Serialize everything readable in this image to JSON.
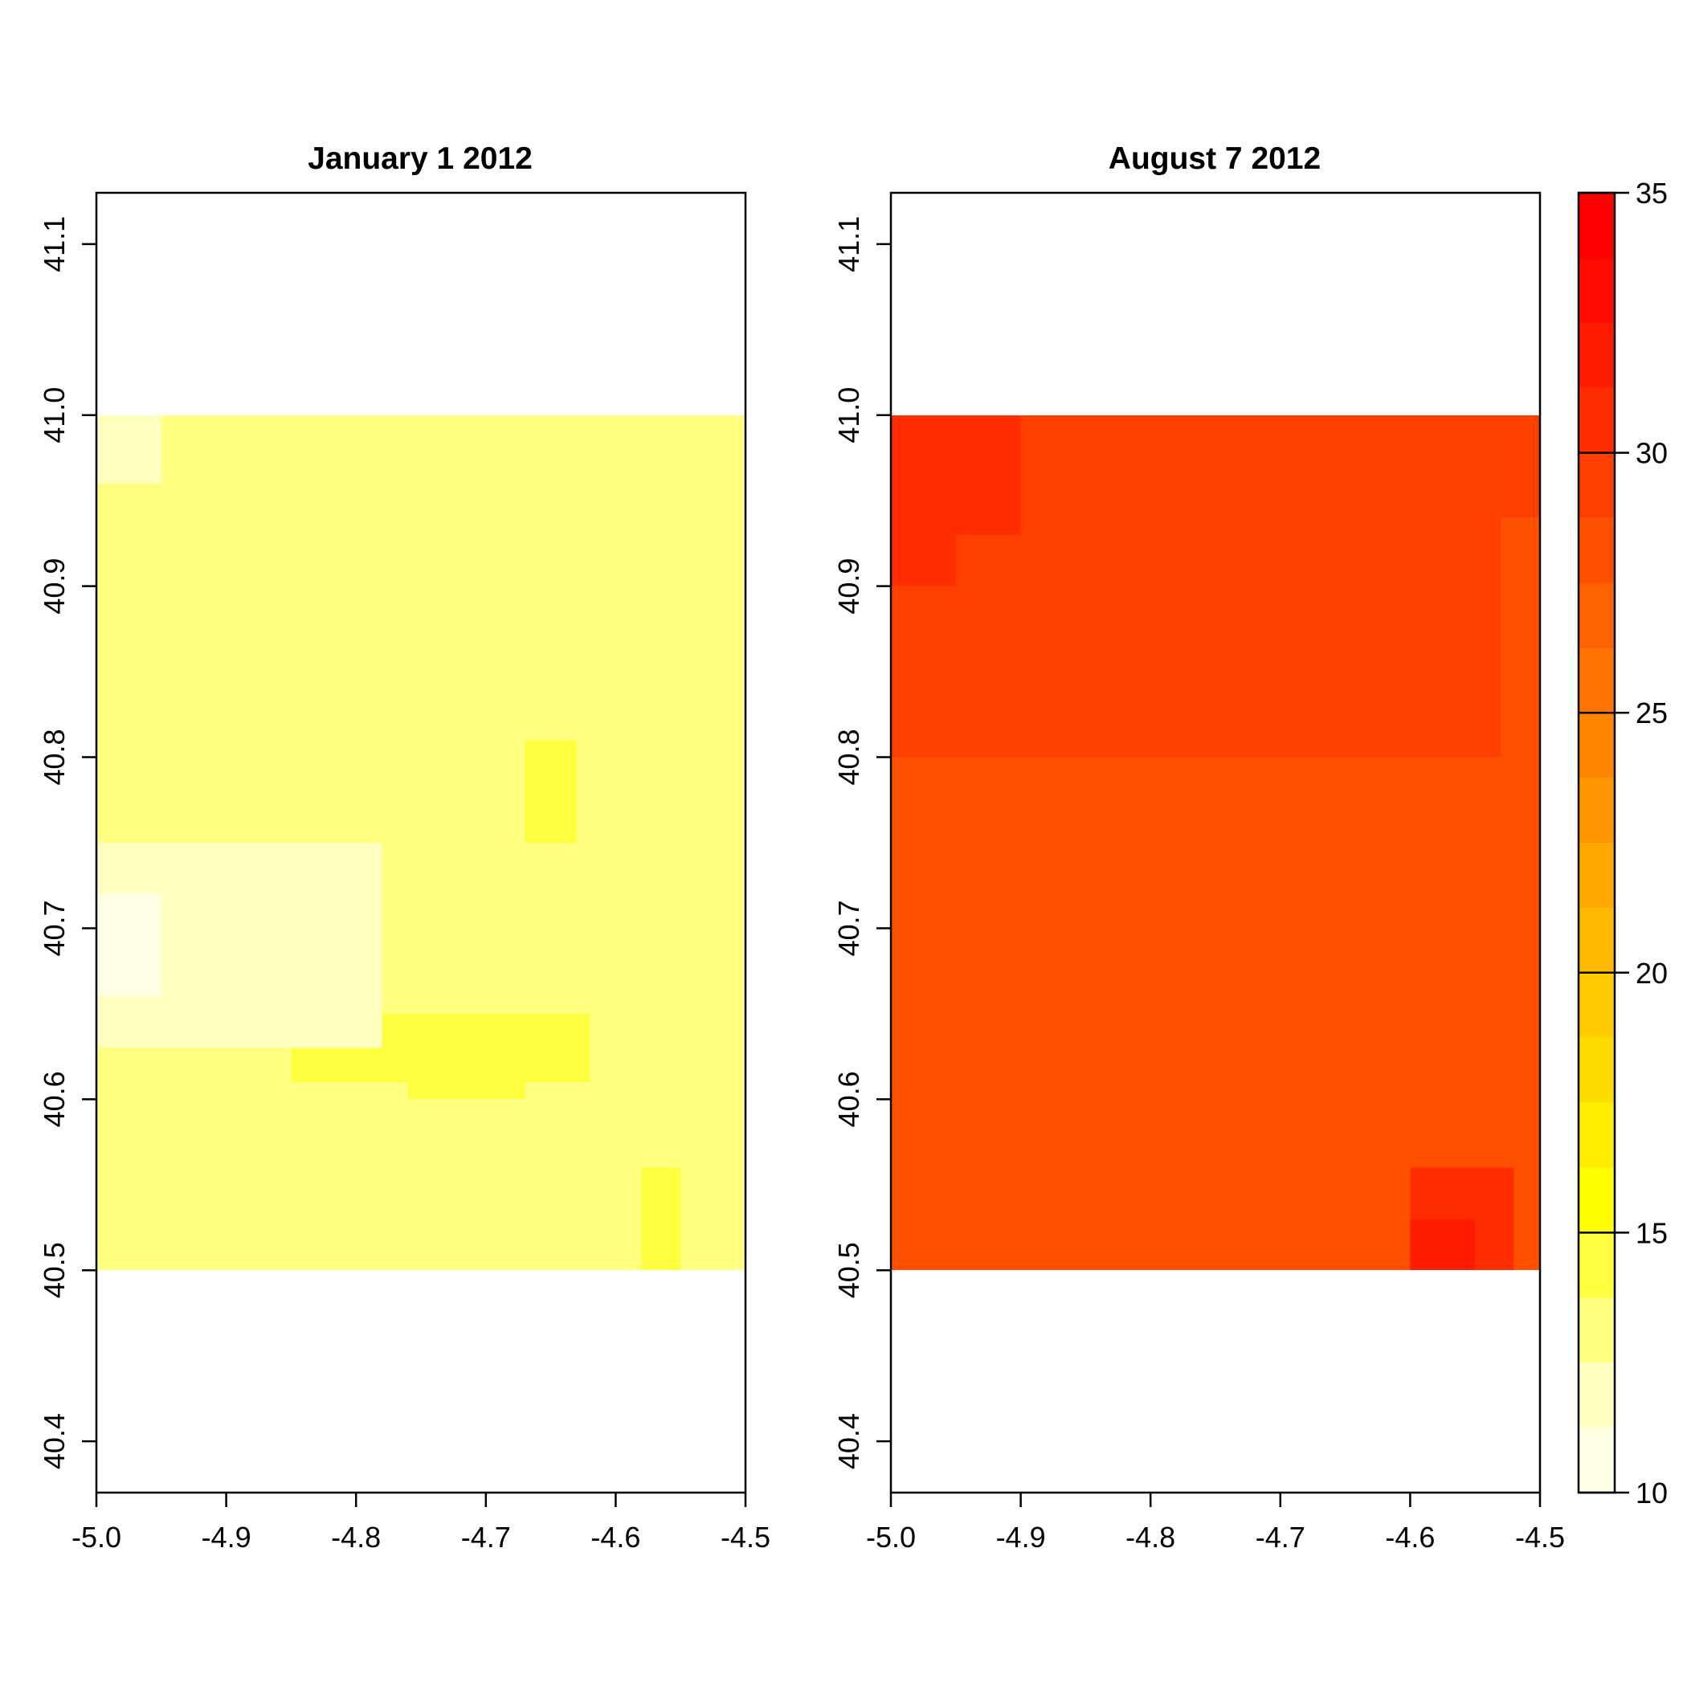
{
  "chart_data": [
    {
      "type": "heatmap",
      "title": "January 1 2012",
      "xlim": [
        -5.0,
        -4.5
      ],
      "ylim": [
        40.37,
        41.13
      ],
      "extent": {
        "x": [
          -5.0,
          -4.5
        ],
        "y": [
          40.5,
          41.0
        ]
      },
      "x_ticks": [
        "-5.0",
        "-4.9",
        "-4.8",
        "-4.7",
        "-4.6",
        "-4.5"
      ],
      "y_ticks": [
        "40.4",
        "40.5",
        "40.6",
        "40.7",
        "40.8",
        "40.9",
        "41.0",
        "41.1"
      ],
      "regions": [
        {
          "x": [
            -5.0,
            -4.5
          ],
          "y": [
            40.5,
            41.0
          ],
          "value": 12.5
        },
        {
          "x": [
            -5.0,
            -4.5
          ],
          "y": [
            40.5,
            40.965
          ],
          "value": 13.5
        },
        {
          "x": [
            -5.0,
            -4.9
          ],
          "y": [
            40.5,
            40.93
          ],
          "value": 12.5
        },
        {
          "x": [
            -4.85,
            -4.5
          ],
          "y": [
            40.71,
            40.87
          ],
          "value": 13.5
        },
        {
          "x": [
            -4.88,
            -4.55
          ],
          "y": [
            40.5,
            40.68
          ],
          "value": 13.5
        },
        {
          "x": [
            -4.85,
            -4.62
          ],
          "y": [
            40.61,
            40.65
          ],
          "value": 14.5
        },
        {
          "x": [
            -4.76,
            -4.67
          ],
          "y": [
            40.6,
            40.65
          ],
          "value": 14.5
        },
        {
          "x": [
            -4.67,
            -4.63
          ],
          "y": [
            40.75,
            40.81
          ],
          "value": 14.5
        },
        {
          "x": [
            -4.58,
            -4.55
          ],
          "y": [
            40.5,
            40.56
          ],
          "value": 14.5
        },
        {
          "x": [
            -5.0,
            -4.78
          ],
          "y": [
            40.63,
            40.75
          ],
          "value": 11.5
        },
        {
          "x": [
            -5.0,
            -4.95
          ],
          "y": [
            40.66,
            40.72
          ],
          "value": 10.5
        },
        {
          "x": [
            -5.0,
            -4.7
          ],
          "y": [
            40.5,
            40.55
          ],
          "value": 12.5
        },
        {
          "x": [
            -5.0,
            -4.95
          ],
          "y": [
            40.96,
            41.0
          ],
          "value": 11.5
        },
        {
          "x": [
            -4.53,
            -4.5
          ],
          "y": [
            40.88,
            40.96
          ],
          "value": 12.5
        },
        {
          "x": [
            -4.53,
            -4.5
          ],
          "y": [
            40.6,
            40.7
          ],
          "value": 12.5
        }
      ]
    },
    {
      "type": "heatmap",
      "title": "August 7 2012",
      "xlim": [
        -5.0,
        -4.5
      ],
      "ylim": [
        40.37,
        41.13
      ],
      "extent": {
        "x": [
          -5.0,
          -4.5
        ],
        "y": [
          40.5,
          41.0
        ]
      },
      "x_ticks": [
        "-5.0",
        "-4.9",
        "-4.8",
        "-4.7",
        "-4.6",
        "-4.5"
      ],
      "y_ticks": [
        "40.4",
        "40.5",
        "40.6",
        "40.7",
        "40.8",
        "40.9",
        "41.0",
        "41.1"
      ],
      "regions": [
        {
          "x": [
            -5.0,
            -4.5
          ],
          "y": [
            40.5,
            41.0
          ],
          "value": 29.5
        },
        {
          "x": [
            -5.0,
            -4.5
          ],
          "y": [
            40.5,
            40.8
          ],
          "value": 28.5
        },
        {
          "x": [
            -4.92,
            -4.6
          ],
          "y": [
            40.56,
            40.73
          ],
          "value": 27.5
        },
        {
          "x": [
            -4.65,
            -4.6
          ],
          "y": [
            40.63,
            40.68
          ],
          "value": 27.5
        },
        {
          "x": [
            -5.0,
            -4.95
          ],
          "y": [
            40.58,
            40.7
          ],
          "value": 27.5
        },
        {
          "x": [
            -5.0,
            -4.9
          ],
          "y": [
            40.93,
            41.0
          ],
          "value": 30.5
        },
        {
          "x": [
            -5.0,
            -4.95
          ],
          "y": [
            40.9,
            40.93
          ],
          "value": 30.5
        },
        {
          "x": [
            -4.6,
            -4.52
          ],
          "y": [
            40.5,
            40.56
          ],
          "value": 30.5
        },
        {
          "x": [
            -4.6,
            -4.55
          ],
          "y": [
            40.5,
            40.53
          ],
          "value": 31.5
        },
        {
          "x": [
            -4.53,
            -4.5
          ],
          "y": [
            40.7,
            40.94
          ],
          "value": 28.5
        }
      ]
    }
  ],
  "legend": {
    "ticks": [
      "10",
      "15",
      "20",
      "25",
      "30",
      "35"
    ],
    "range": [
      10,
      35
    ],
    "breaks": [
      10,
      11.25,
      12.5,
      13.75,
      15,
      16.25,
      17.5,
      18.75,
      20,
      21.25,
      22.5,
      23.75,
      25,
      26.25,
      27.5,
      28.75,
      30,
      31.25,
      32.5,
      33.75,
      35
    ],
    "colors": [
      "#FFFFE6",
      "#FFFFBF",
      "#FFFF80",
      "#FFFF40",
      "#FFFF00",
      "#FFEE00",
      "#FFDC00",
      "#FFCB00",
      "#FFB900",
      "#FFA800",
      "#FF9600",
      "#FF8500",
      "#FF7300",
      "#FF6200",
      "#FF5000",
      "#FF3F00",
      "#FF2D00",
      "#FF1C00",
      "#FF0A00",
      "#FF0000"
    ]
  }
}
